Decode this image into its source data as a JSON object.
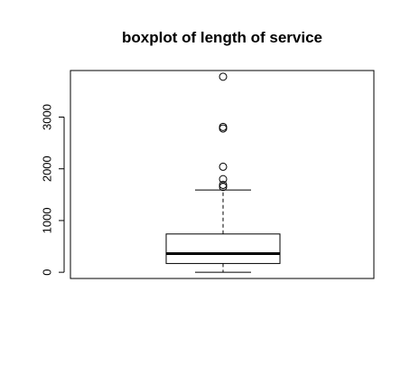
{
  "chart_data": {
    "type": "boxplot",
    "title": "boxplot of length of service",
    "xlabel": "",
    "ylabel": "",
    "ylim": [
      -120,
      3900
    ],
    "y_ticks": [
      0,
      1000,
      2000,
      3000
    ],
    "y_tick_labels": [
      "0",
      "1000",
      "2000",
      "3000"
    ],
    "grid": false,
    "box": {
      "min": 0,
      "q1": 170,
      "median": 360,
      "q3": 740,
      "whisker_upper": 1590
    },
    "outliers": [
      1650,
      1690,
      1800,
      2040,
      2780,
      2810,
      3780
    ],
    "colors": {
      "stroke": "#000000",
      "background": "#ffffff",
      "outlier_fill": "none"
    }
  }
}
